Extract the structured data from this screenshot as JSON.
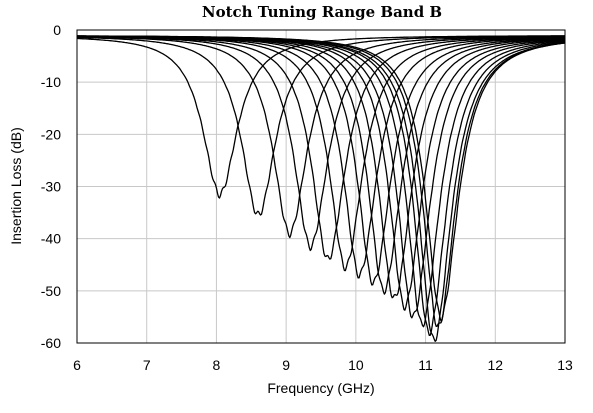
{
  "chart_data": {
    "type": "line",
    "title": "Notch Tuning Range Band B",
    "xlabel": "Frequency (GHz)",
    "ylabel": "Insertion Loss (dB)",
    "xlim": [
      6,
      13
    ],
    "ylim": [
      -60,
      0
    ],
    "xticks": [
      "6",
      "7",
      "8",
      "9",
      "10",
      "11",
      "12",
      "13"
    ],
    "yticks": [
      "0",
      "-10",
      "-20",
      "-30",
      "-40",
      "-50",
      "-60"
    ],
    "grid": true,
    "legend": "none",
    "series": [
      {
        "f0": 8.05,
        "depth": -31.5
      },
      {
        "f0": 8.6,
        "depth": -35.5
      },
      {
        "f0": 9.05,
        "depth": -39
      },
      {
        "f0": 9.35,
        "depth": -41.5
      },
      {
        "f0": 9.6,
        "depth": -44
      },
      {
        "f0": 9.85,
        "depth": -45.5
      },
      {
        "f0": 10.05,
        "depth": -47
      },
      {
        "f0": 10.25,
        "depth": -48.5
      },
      {
        "f0": 10.4,
        "depth": -50
      },
      {
        "f0": 10.55,
        "depth": -51.5
      },
      {
        "f0": 10.7,
        "depth": -53
      },
      {
        "f0": 10.82,
        "depth": -55
      },
      {
        "f0": 10.95,
        "depth": -56.5
      },
      {
        "f0": 11.05,
        "depth": -58
      },
      {
        "f0": 11.12,
        "depth": -59.5
      },
      {
        "f0": 11.18,
        "depth": -57
      },
      {
        "f0": 11.22,
        "depth": -55
      }
    ]
  }
}
